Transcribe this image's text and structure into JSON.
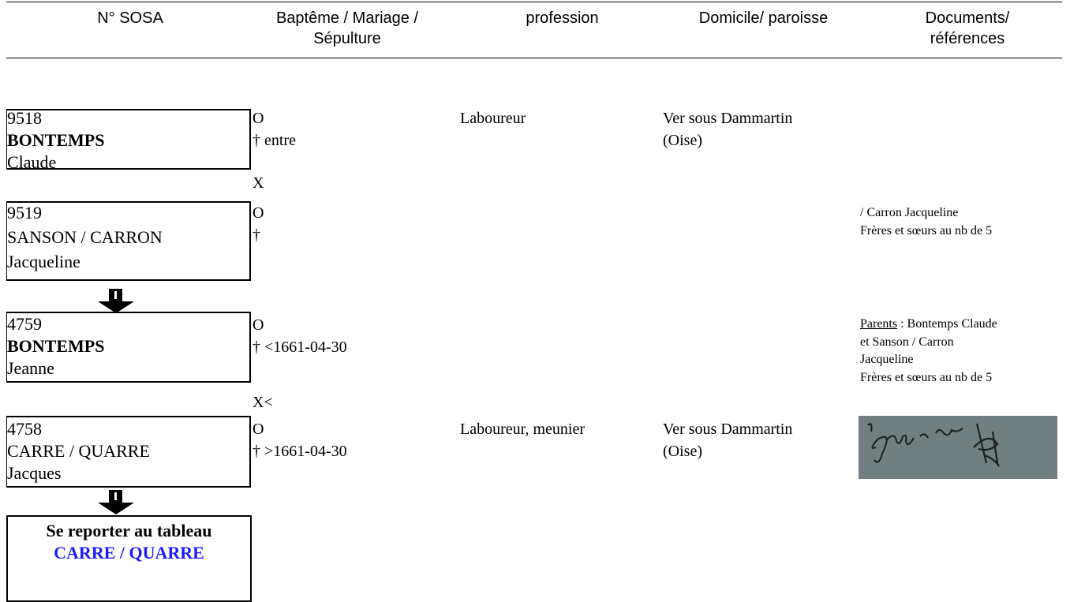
{
  "header": {
    "columns": [
      [
        "N° SOSA"
      ],
      [
        "Baptême / Mariage /",
        "Sépulture"
      ],
      [
        "profession"
      ],
      [
        "Domicile/ paroisse"
      ],
      [
        "Documents/",
        "références"
      ]
    ]
  },
  "entries": [
    {
      "sosa": "9518",
      "surname": "BONTEMPS",
      "given": "Claude",
      "events": [
        "O",
        "† entre"
      ],
      "profession": "Laboureur",
      "domicile": [
        "Ver sous Dammartin",
        "(Oise)"
      ]
    },
    {
      "sosa": "9519",
      "surname": "SANSON / CARRON",
      "given": "Jacqueline",
      "events": [
        "O",
        "†"
      ],
      "documents": [
        "/ Carron Jacqueline",
        "Frères et sœurs au nb de 5"
      ]
    },
    {
      "sosa": "4759",
      "surname": "BONTEMPS",
      "given": "Jeanne",
      "events": [
        "O",
        "† <1661-04-30"
      ],
      "documents_label": "Parents",
      "documents": [
        " : Bontemps Claude",
        "et Sanson / Carron",
        "Jacqueline",
        "Frères et sœurs au nb de 5"
      ]
    },
    {
      "sosa": "4758",
      "surname": "CARRE / QUARRE",
      "given": "Jacques",
      "events": [
        "O",
        "† >1661-04-30"
      ],
      "profession": "Laboureur, meunier",
      "domicile": [
        "Ver sous Dammartin",
        "(Oise)"
      ]
    }
  ],
  "unions": [
    "X",
    "X<"
  ],
  "reference": {
    "text": "Se reporter au tableau",
    "link": "CARRE / QUARRE"
  }
}
